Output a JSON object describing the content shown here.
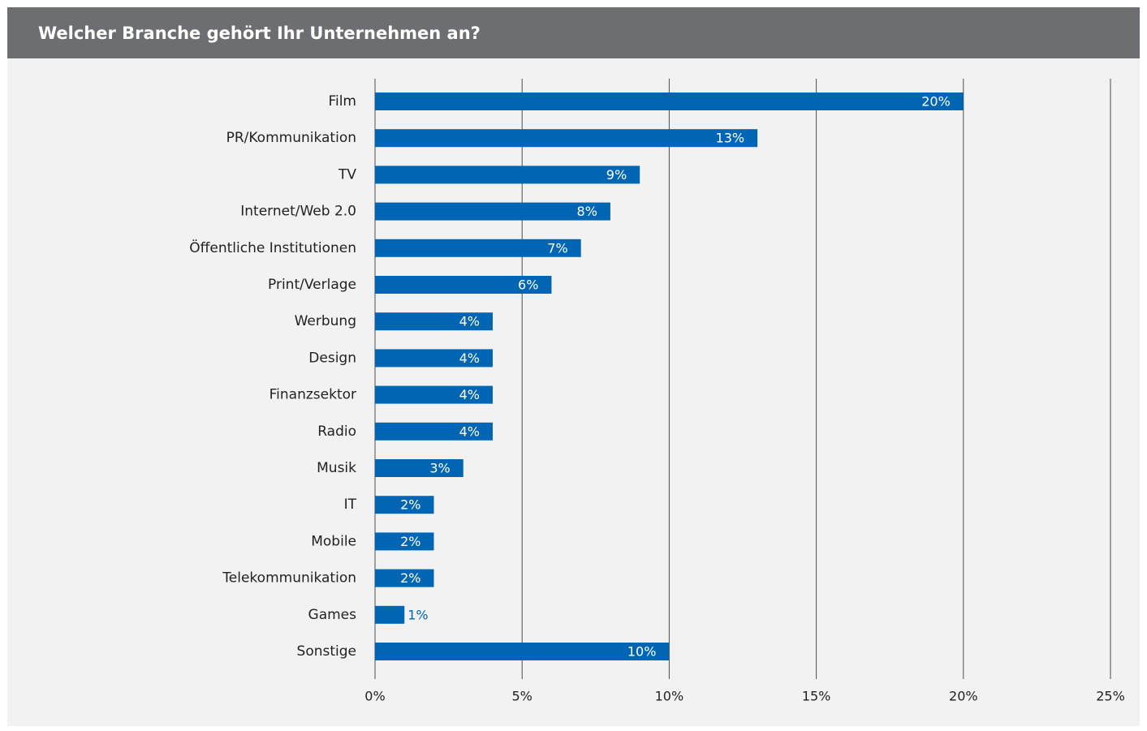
{
  "chart_data": {
    "type": "bar",
    "orientation": "horizontal",
    "title": "Welcher Branche gehört Ihr Unternehmen an?",
    "categories": [
      "Film",
      "PR/Kommunikation",
      "TV",
      "Internet/Web 2.0",
      "Öffentliche Institutionen",
      "Print/Verlage",
      "Werbung",
      "Design",
      "Finanzsektor",
      "Radio",
      "Musik",
      "IT",
      "Mobile",
      "Telekommunikation",
      "Games",
      "Sonstige"
    ],
    "values": [
      20,
      13,
      9,
      8,
      7,
      6,
      4,
      4,
      4,
      4,
      3,
      2,
      2,
      2,
      1,
      10
    ],
    "value_labels": [
      "20%",
      "13%",
      "9%",
      "8%",
      "7%",
      "6%",
      "4%",
      "4%",
      "4%",
      "4%",
      "3%",
      "2%",
      "2%",
      "2%",
      "1%",
      "10%"
    ],
    "color": "#0066b3",
    "xlim": [
      0,
      25
    ],
    "xticks": [
      {
        "value": 0,
        "label": "0%"
      },
      {
        "value": 5,
        "label": "5%"
      },
      {
        "value": 10,
        "label": "10%"
      },
      {
        "value": 15,
        "label": "15%"
      },
      {
        "value": 20,
        "label": "20%"
      },
      {
        "value": 25,
        "label": "25%"
      }
    ],
    "grid": true
  }
}
